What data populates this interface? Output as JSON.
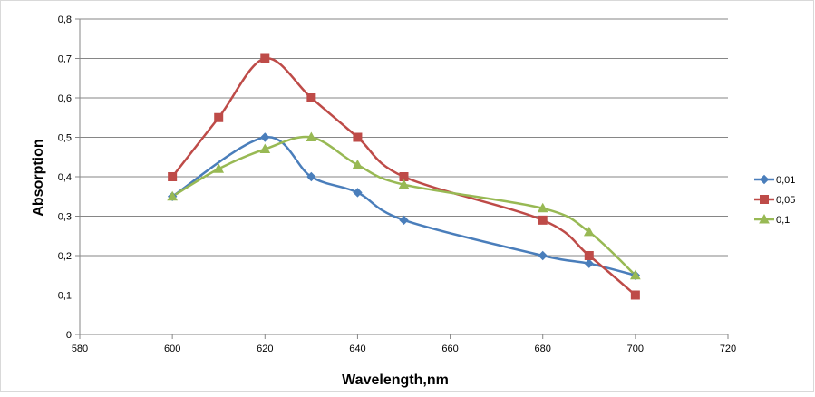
{
  "chart_data": {
    "type": "line",
    "title": "",
    "xlabel": "Wavelength,nm",
    "ylabel": "Absorption",
    "xlim": [
      580,
      720
    ],
    "ylim": [
      0,
      0.8
    ],
    "x_ticks": [
      580,
      600,
      620,
      640,
      660,
      680,
      700,
      720
    ],
    "y_ticks": [
      0,
      0.1,
      0.2,
      0.3,
      0.4,
      0.5,
      0.6,
      0.7,
      0.8
    ],
    "x_tick_labels": [
      "580",
      "600",
      "620",
      "640",
      "660",
      "680",
      "700",
      "720"
    ],
    "y_tick_labels": [
      "0",
      "0,1",
      "0,2",
      "0,3",
      "0,4",
      "0,5",
      "0,6",
      "0,7",
      "0,8"
    ],
    "grid": "horizontal",
    "legend_position": "right",
    "series": [
      {
        "name": "0,01",
        "color": "#4a7ebb",
        "marker": "diamond",
        "x": [
          600,
          620,
          630,
          640,
          650,
          680,
          690,
          700
        ],
        "y": [
          0.35,
          0.5,
          0.4,
          0.36,
          0.29,
          0.2,
          0.18,
          0.15
        ]
      },
      {
        "name": "0,05",
        "color": "#be4b48",
        "marker": "square",
        "x": [
          600,
          610,
          620,
          630,
          640,
          650,
          680,
          690,
          700
        ],
        "y": [
          0.4,
          0.55,
          0.7,
          0.6,
          0.5,
          0.4,
          0.29,
          0.2,
          0.1
        ]
      },
      {
        "name": "0,1",
        "color": "#98b954",
        "marker": "triangle",
        "x": [
          600,
          610,
          620,
          630,
          640,
          650,
          680,
          690,
          700
        ],
        "y": [
          0.35,
          0.42,
          0.47,
          0.5,
          0.43,
          0.38,
          0.32,
          0.26,
          0.15
        ]
      }
    ]
  }
}
